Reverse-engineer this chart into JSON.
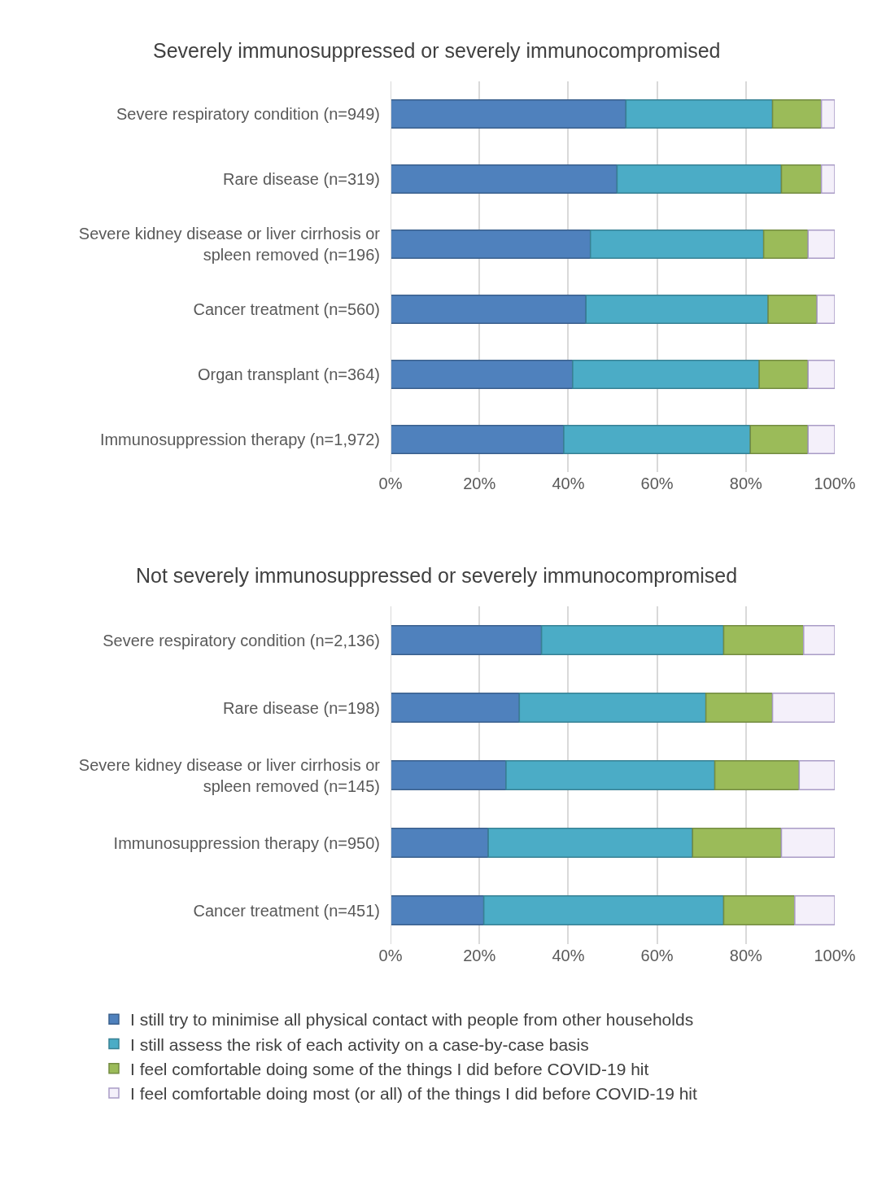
{
  "chart_data": [
    {
      "type": "bar",
      "orientation": "horizontal",
      "stacked": true,
      "title": "Severely immunosuppressed or severely immunocompromised",
      "categories": [
        "Severe respiratory condition (n=949)",
        "Rare disease (n=319)",
        "Severe kidney disease or liver cirrhosis or spleen removed (n=196)",
        "Cancer treatment (n=560)",
        "Organ transplant (n=364)",
        "Immunosuppression therapy (n=1,972)"
      ],
      "series": [
        {
          "name": "I still try to minimise all physical contact with people from other households",
          "color": "#4f81bd",
          "values": [
            53,
            51,
            45,
            44,
            41,
            39
          ]
        },
        {
          "name": "I still assess the risk of each activity on a case-by-case basis",
          "color": "#4bacc6",
          "values": [
            33,
            37,
            39,
            41,
            42,
            42
          ]
        },
        {
          "name": "I feel comfortable doing some of the things I did before COVID-19 hit",
          "color": "#9bbb59",
          "values": [
            11,
            9,
            10,
            11,
            11,
            13
          ]
        },
        {
          "name": "I feel comfortable doing most (or all) of the things I did before COVID-19 hit",
          "color": "#f4f0fa",
          "values": [
            3,
            3,
            6,
            4,
            6,
            6
          ]
        }
      ],
      "xlim": [
        0,
        100
      ],
      "xticks": [
        {
          "value": 0,
          "label": "0%"
        },
        {
          "value": 20,
          "label": "20%"
        },
        {
          "value": 40,
          "label": "40%"
        },
        {
          "value": 60,
          "label": "60%"
        },
        {
          "value": 80,
          "label": "80%"
        },
        {
          "value": 100,
          "label": "100%"
        }
      ],
      "grid": "x",
      "legend": "bottom"
    },
    {
      "type": "bar",
      "orientation": "horizontal",
      "stacked": true,
      "title": "Not severely immunosuppressed or severely immunocompromised",
      "categories": [
        "Severe respiratory condition (n=2,136)",
        "Rare disease (n=198)",
        "Severe kidney disease or liver cirrhosis or spleen removed (n=145)",
        "Immunosuppression therapy (n=950)",
        "Cancer treatment (n=451)"
      ],
      "series": [
        {
          "name": "I still try to minimise all physical contact with people from other households",
          "color": "#4f81bd",
          "values": [
            34,
            29,
            26,
            22,
            21
          ]
        },
        {
          "name": "I still assess the risk of each activity on a case-by-case basis",
          "color": "#4bacc6",
          "values": [
            41,
            42,
            47,
            46,
            54
          ]
        },
        {
          "name": "I feel comfortable doing some of the things I did before COVID-19 hit",
          "color": "#9bbb59",
          "values": [
            18,
            15,
            19,
            20,
            16
          ]
        },
        {
          "name": "I feel comfortable doing most (or all) of the things I did before COVID-19 hit",
          "color": "#f4f0fa",
          "values": [
            7,
            14,
            8,
            12,
            9
          ]
        }
      ],
      "xlim": [
        0,
        100
      ],
      "xticks": [
        {
          "value": 0,
          "label": "0%"
        },
        {
          "value": 20,
          "label": "20%"
        },
        {
          "value": 40,
          "label": "40%"
        },
        {
          "value": 60,
          "label": "60%"
        },
        {
          "value": 80,
          "label": "80%"
        },
        {
          "value": 100,
          "label": "100%"
        }
      ],
      "grid": "x",
      "legend": "bottom"
    }
  ]
}
